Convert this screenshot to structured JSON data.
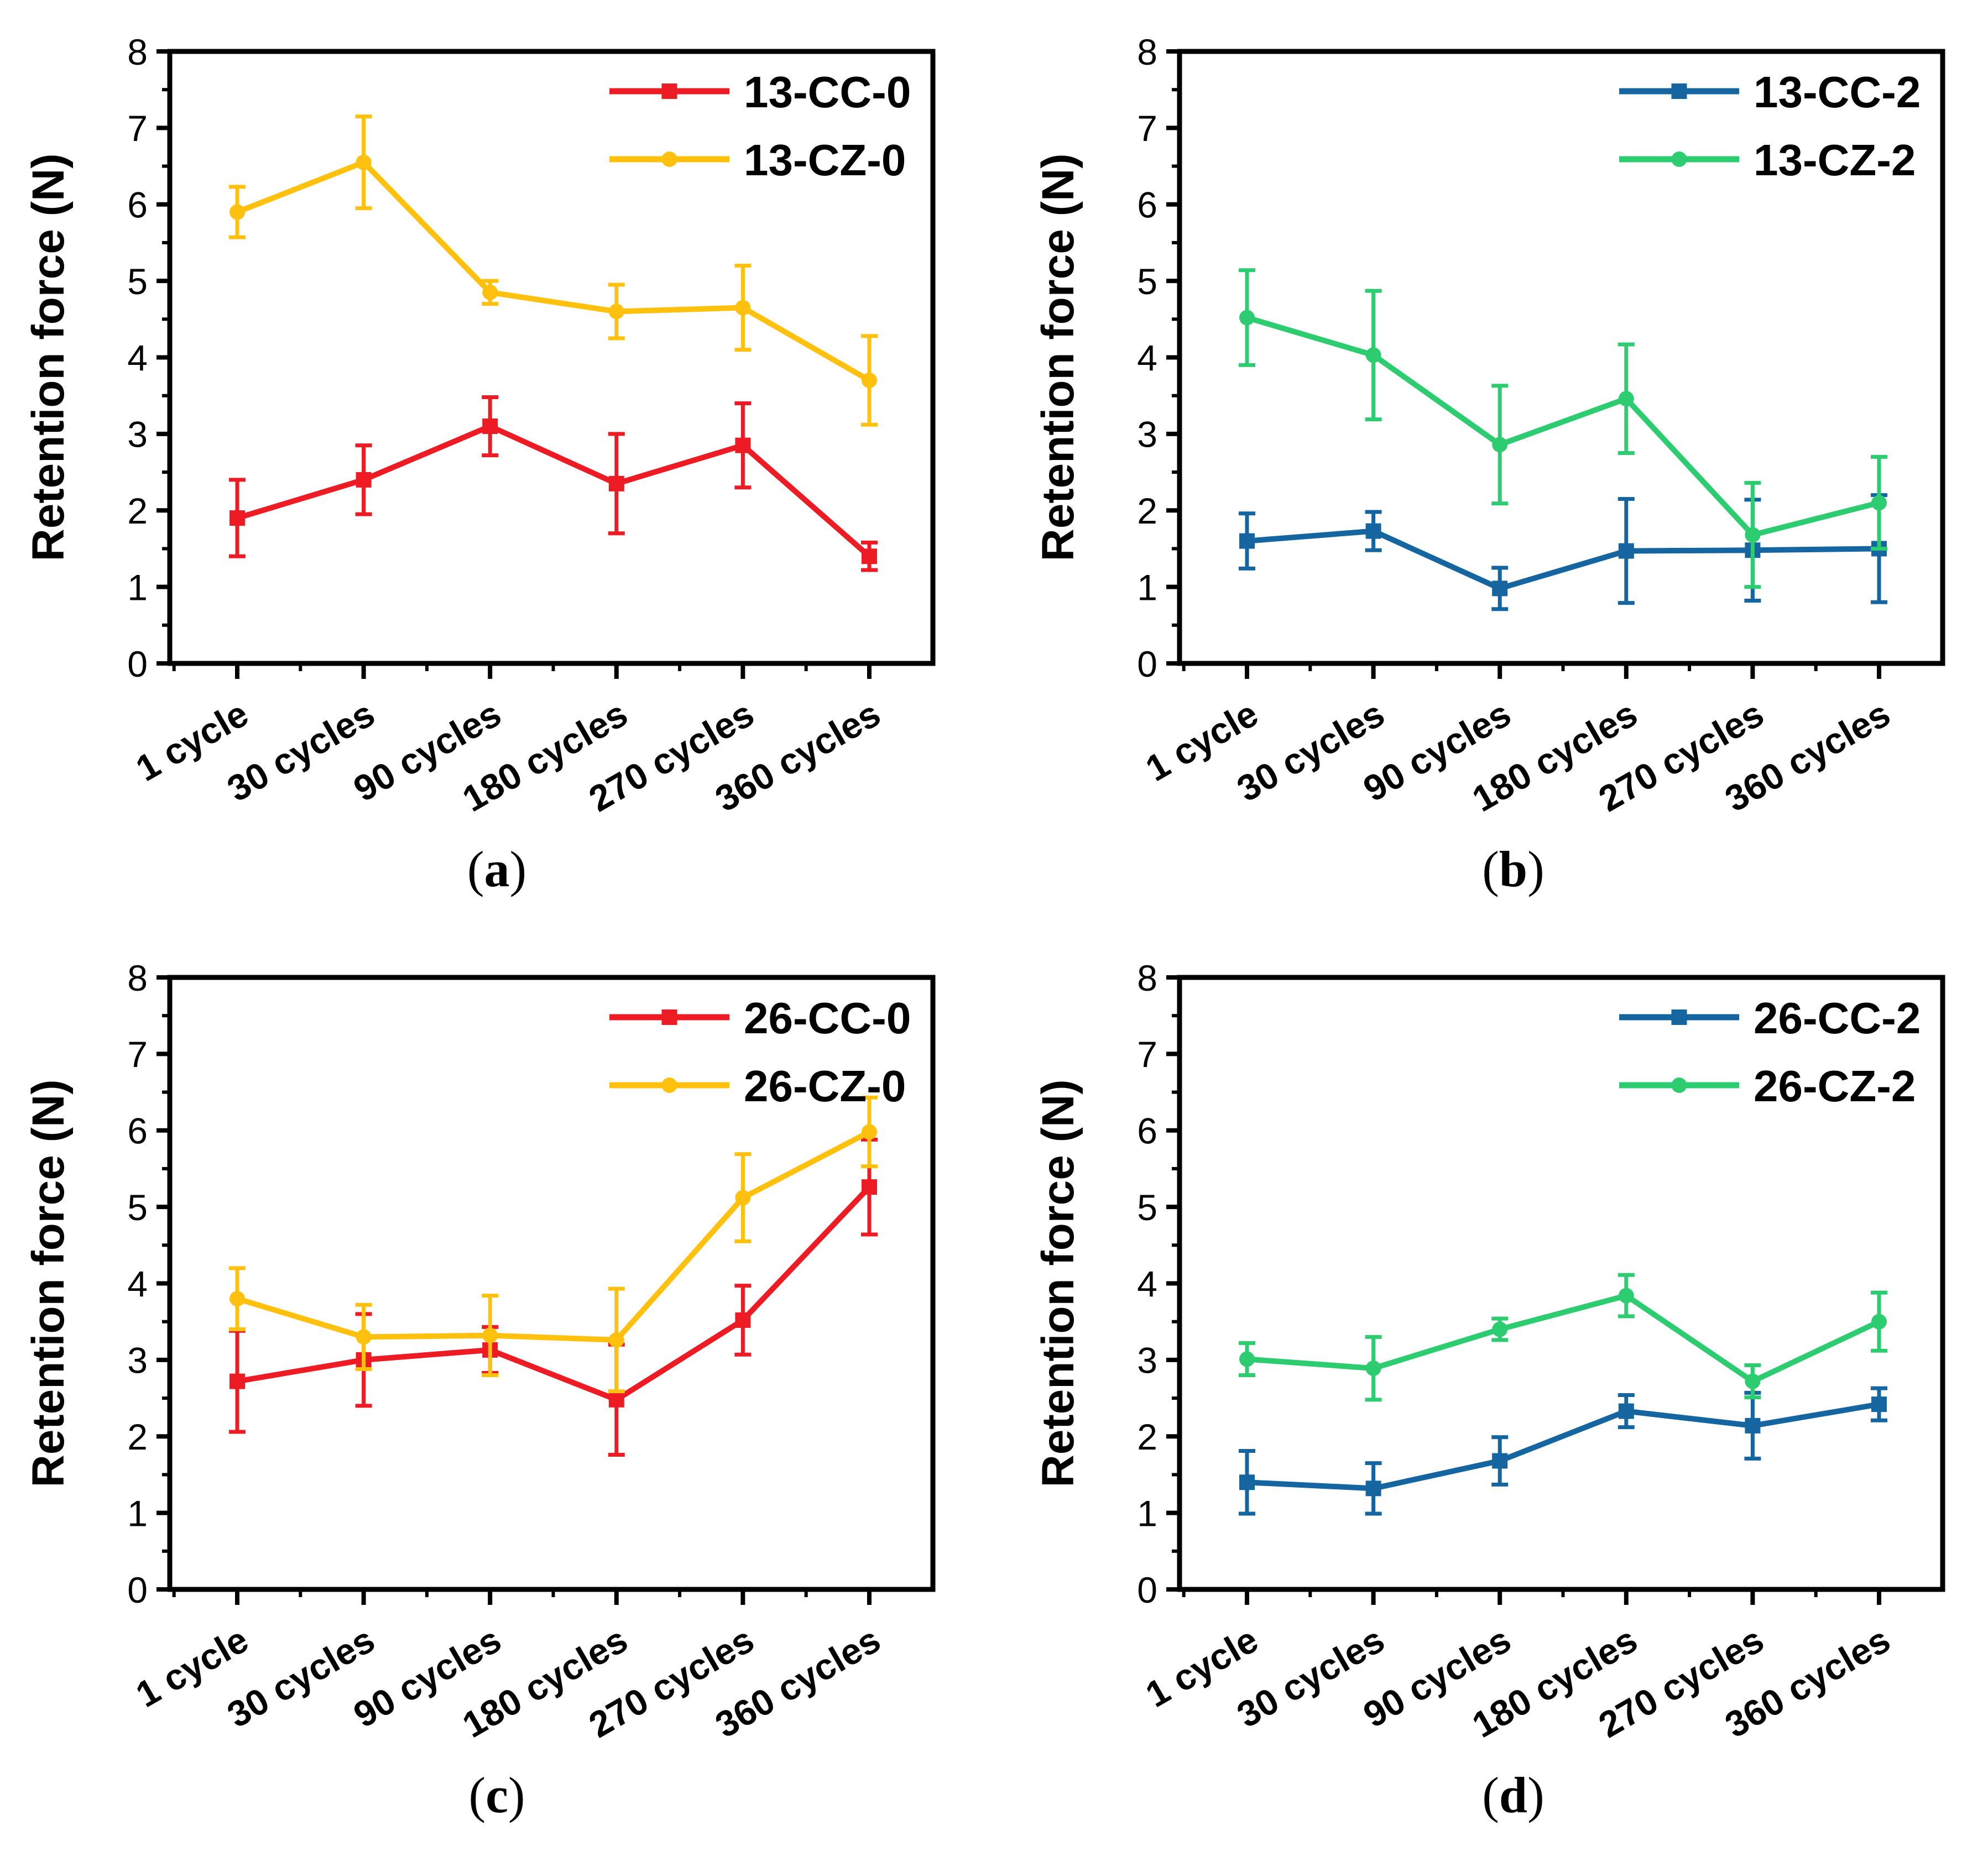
{
  "figure": {
    "background": "#ffffff",
    "text_color": "#000000"
  },
  "captions": {
    "open": "(",
    "close": ")",
    "a": "a",
    "b": "b",
    "c": "c",
    "d": "d"
  },
  "axis": {
    "y_label": "Retention force (N)",
    "y_min": 0,
    "y_max": 8,
    "y_major_ticks": [
      0,
      1,
      2,
      3,
      4,
      5,
      6,
      7,
      8
    ],
    "y_minor_step": 0.5,
    "categories": [
      "1 cycle",
      "30 cycles",
      "90 cycles",
      "180 cycles",
      "270 cycles",
      "360 cycles"
    ]
  },
  "colors": {
    "red": "#ED1C24",
    "yellow": "#FFC10D",
    "blue": "#1565A0",
    "green": "#2ECC71",
    "axis": "#000000"
  },
  "chart_data": [
    {
      "id": "a",
      "type": "line",
      "title": "",
      "xlabel": "",
      "ylabel": "Retention force (N)",
      "ylim": [
        0,
        8
      ],
      "grid": false,
      "legend_position": "top-right-inside",
      "categories": [
        "1 cycle",
        "30 cycles",
        "90 cycles",
        "180 cycles",
        "270 cycles",
        "360 cycles"
      ],
      "series": [
        {
          "name": "13-CC-0",
          "color": "#ED1C24",
          "marker": "square",
          "values": [
            1.9,
            2.4,
            3.1,
            2.35,
            2.85,
            1.4
          ],
          "errors": [
            0.5,
            0.45,
            0.38,
            0.65,
            0.55,
            0.18
          ]
        },
        {
          "name": "13-CZ-0",
          "color": "#FFC10D",
          "marker": "circle",
          "values": [
            5.9,
            6.55,
            4.85,
            4.6,
            4.65,
            3.7
          ],
          "errors": [
            0.33,
            0.6,
            0.15,
            0.35,
            0.55,
            0.58
          ]
        }
      ]
    },
    {
      "id": "b",
      "type": "line",
      "title": "",
      "xlabel": "",
      "ylabel": "Retention force (N)",
      "ylim": [
        0,
        8
      ],
      "grid": false,
      "legend_position": "top-right-inside",
      "categories": [
        "1 cycle",
        "30 cycles",
        "90 cycles",
        "180 cycles",
        "270 cycles",
        "360 cycles"
      ],
      "series": [
        {
          "name": "13-CC-2",
          "color": "#1565A0",
          "marker": "square",
          "values": [
            1.6,
            1.73,
            0.98,
            1.47,
            1.48,
            1.5
          ],
          "errors": [
            0.36,
            0.25,
            0.27,
            0.68,
            0.66,
            0.7
          ]
        },
        {
          "name": "13-CZ-2",
          "color": "#2ECC71",
          "marker": "circle",
          "values": [
            4.52,
            4.03,
            2.86,
            3.46,
            1.68,
            2.1
          ],
          "errors": [
            0.62,
            0.84,
            0.77,
            0.71,
            0.68,
            0.6
          ]
        }
      ]
    },
    {
      "id": "c",
      "type": "line",
      "title": "",
      "xlabel": "",
      "ylabel": "Retention force (N)",
      "ylim": [
        0,
        8
      ],
      "grid": false,
      "legend_position": "top-right-inside",
      "categories": [
        "1 cycle",
        "30 cycles",
        "90 cycles",
        "180 cycles",
        "270 cycles",
        "360 cycles"
      ],
      "series": [
        {
          "name": "26-CC-0",
          "color": "#ED1C24",
          "marker": "square",
          "values": [
            2.72,
            3.0,
            3.13,
            2.48,
            3.52,
            5.26
          ],
          "errors": [
            0.66,
            0.6,
            0.3,
            0.72,
            0.45,
            0.62
          ]
        },
        {
          "name": "26-CZ-0",
          "color": "#FFC10D",
          "marker": "circle",
          "values": [
            3.8,
            3.3,
            3.32,
            3.26,
            5.12,
            5.98
          ],
          "errors": [
            0.4,
            0.42,
            0.52,
            0.67,
            0.57,
            0.45
          ]
        }
      ]
    },
    {
      "id": "d",
      "type": "line",
      "title": "",
      "xlabel": "",
      "ylabel": "Retention force (N)",
      "ylim": [
        0,
        8
      ],
      "grid": false,
      "legend_position": "top-right-inside",
      "categories": [
        "1 cycle",
        "30 cycles",
        "90 cycles",
        "180 cycles",
        "270 cycles",
        "360 cycles"
      ],
      "series": [
        {
          "name": "26-CC-2",
          "color": "#1565A0",
          "marker": "square",
          "values": [
            1.4,
            1.32,
            1.68,
            2.33,
            2.14,
            2.42
          ],
          "errors": [
            0.41,
            0.33,
            0.31,
            0.21,
            0.43,
            0.21
          ]
        },
        {
          "name": "26-CZ-2",
          "color": "#2ECC71",
          "marker": "circle",
          "values": [
            3.01,
            2.89,
            3.4,
            3.84,
            2.72,
            3.5
          ],
          "errors": [
            0.21,
            0.41,
            0.14,
            0.27,
            0.21,
            0.38
          ]
        }
      ]
    }
  ]
}
